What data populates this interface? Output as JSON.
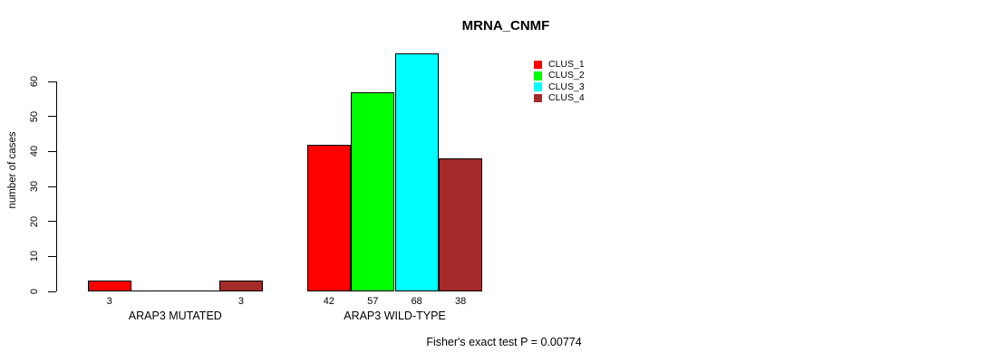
{
  "title": "MRNA_CNMF",
  "footer": "Fisher's exact test P = 0.00774",
  "y_axis": {
    "label": "number of cases",
    "tick_labels": [
      "0",
      "10",
      "20",
      "30",
      "40",
      "50",
      "60"
    ],
    "tick_values": [
      0,
      10,
      20,
      30,
      40,
      50,
      60
    ]
  },
  "legend": {
    "items": [
      {
        "label": "CLUS_1",
        "color": "#FF0000"
      },
      {
        "label": "CLUS_2",
        "color": "#00FF00"
      },
      {
        "label": "CLUS_3",
        "color": "#00FFFF"
      },
      {
        "label": "CLUS_4",
        "color": "#A52A2A"
      }
    ]
  },
  "chart_data": {
    "type": "bar",
    "title": "MRNA_CNMF",
    "xlabel": "",
    "ylabel": "number of cases",
    "ylim": [
      0,
      68
    ],
    "yticks": [
      0,
      10,
      20,
      30,
      40,
      50,
      60
    ],
    "grid": false,
    "legend_position": "top-right",
    "series": [
      {
        "name": "CLUS_1",
        "color": "#FF0000",
        "values": [
          3,
          42
        ]
      },
      {
        "name": "CLUS_2",
        "color": "#00FF00",
        "values": [
          0,
          57
        ]
      },
      {
        "name": "CLUS_3",
        "color": "#00FFFF",
        "values": [
          0,
          68
        ]
      },
      {
        "name": "CLUS_4",
        "color": "#A52A2A",
        "values": [
          3,
          38
        ]
      }
    ],
    "categories": [
      "ARAP3 MUTATED",
      "ARAP3 WILD-TYPE"
    ],
    "groups": [
      {
        "label": "ARAP3 MUTATED",
        "values": [
          3,
          0,
          0,
          3
        ],
        "bar_labels": [
          "3",
          "",
          "",
          "3"
        ]
      },
      {
        "label": "ARAP3 WILD-TYPE",
        "values": [
          42,
          57,
          68,
          38
        ],
        "bar_labels": [
          "42",
          "57",
          "68",
          "38"
        ]
      }
    ],
    "annotation": "Fisher's exact test P = 0.00774"
  }
}
